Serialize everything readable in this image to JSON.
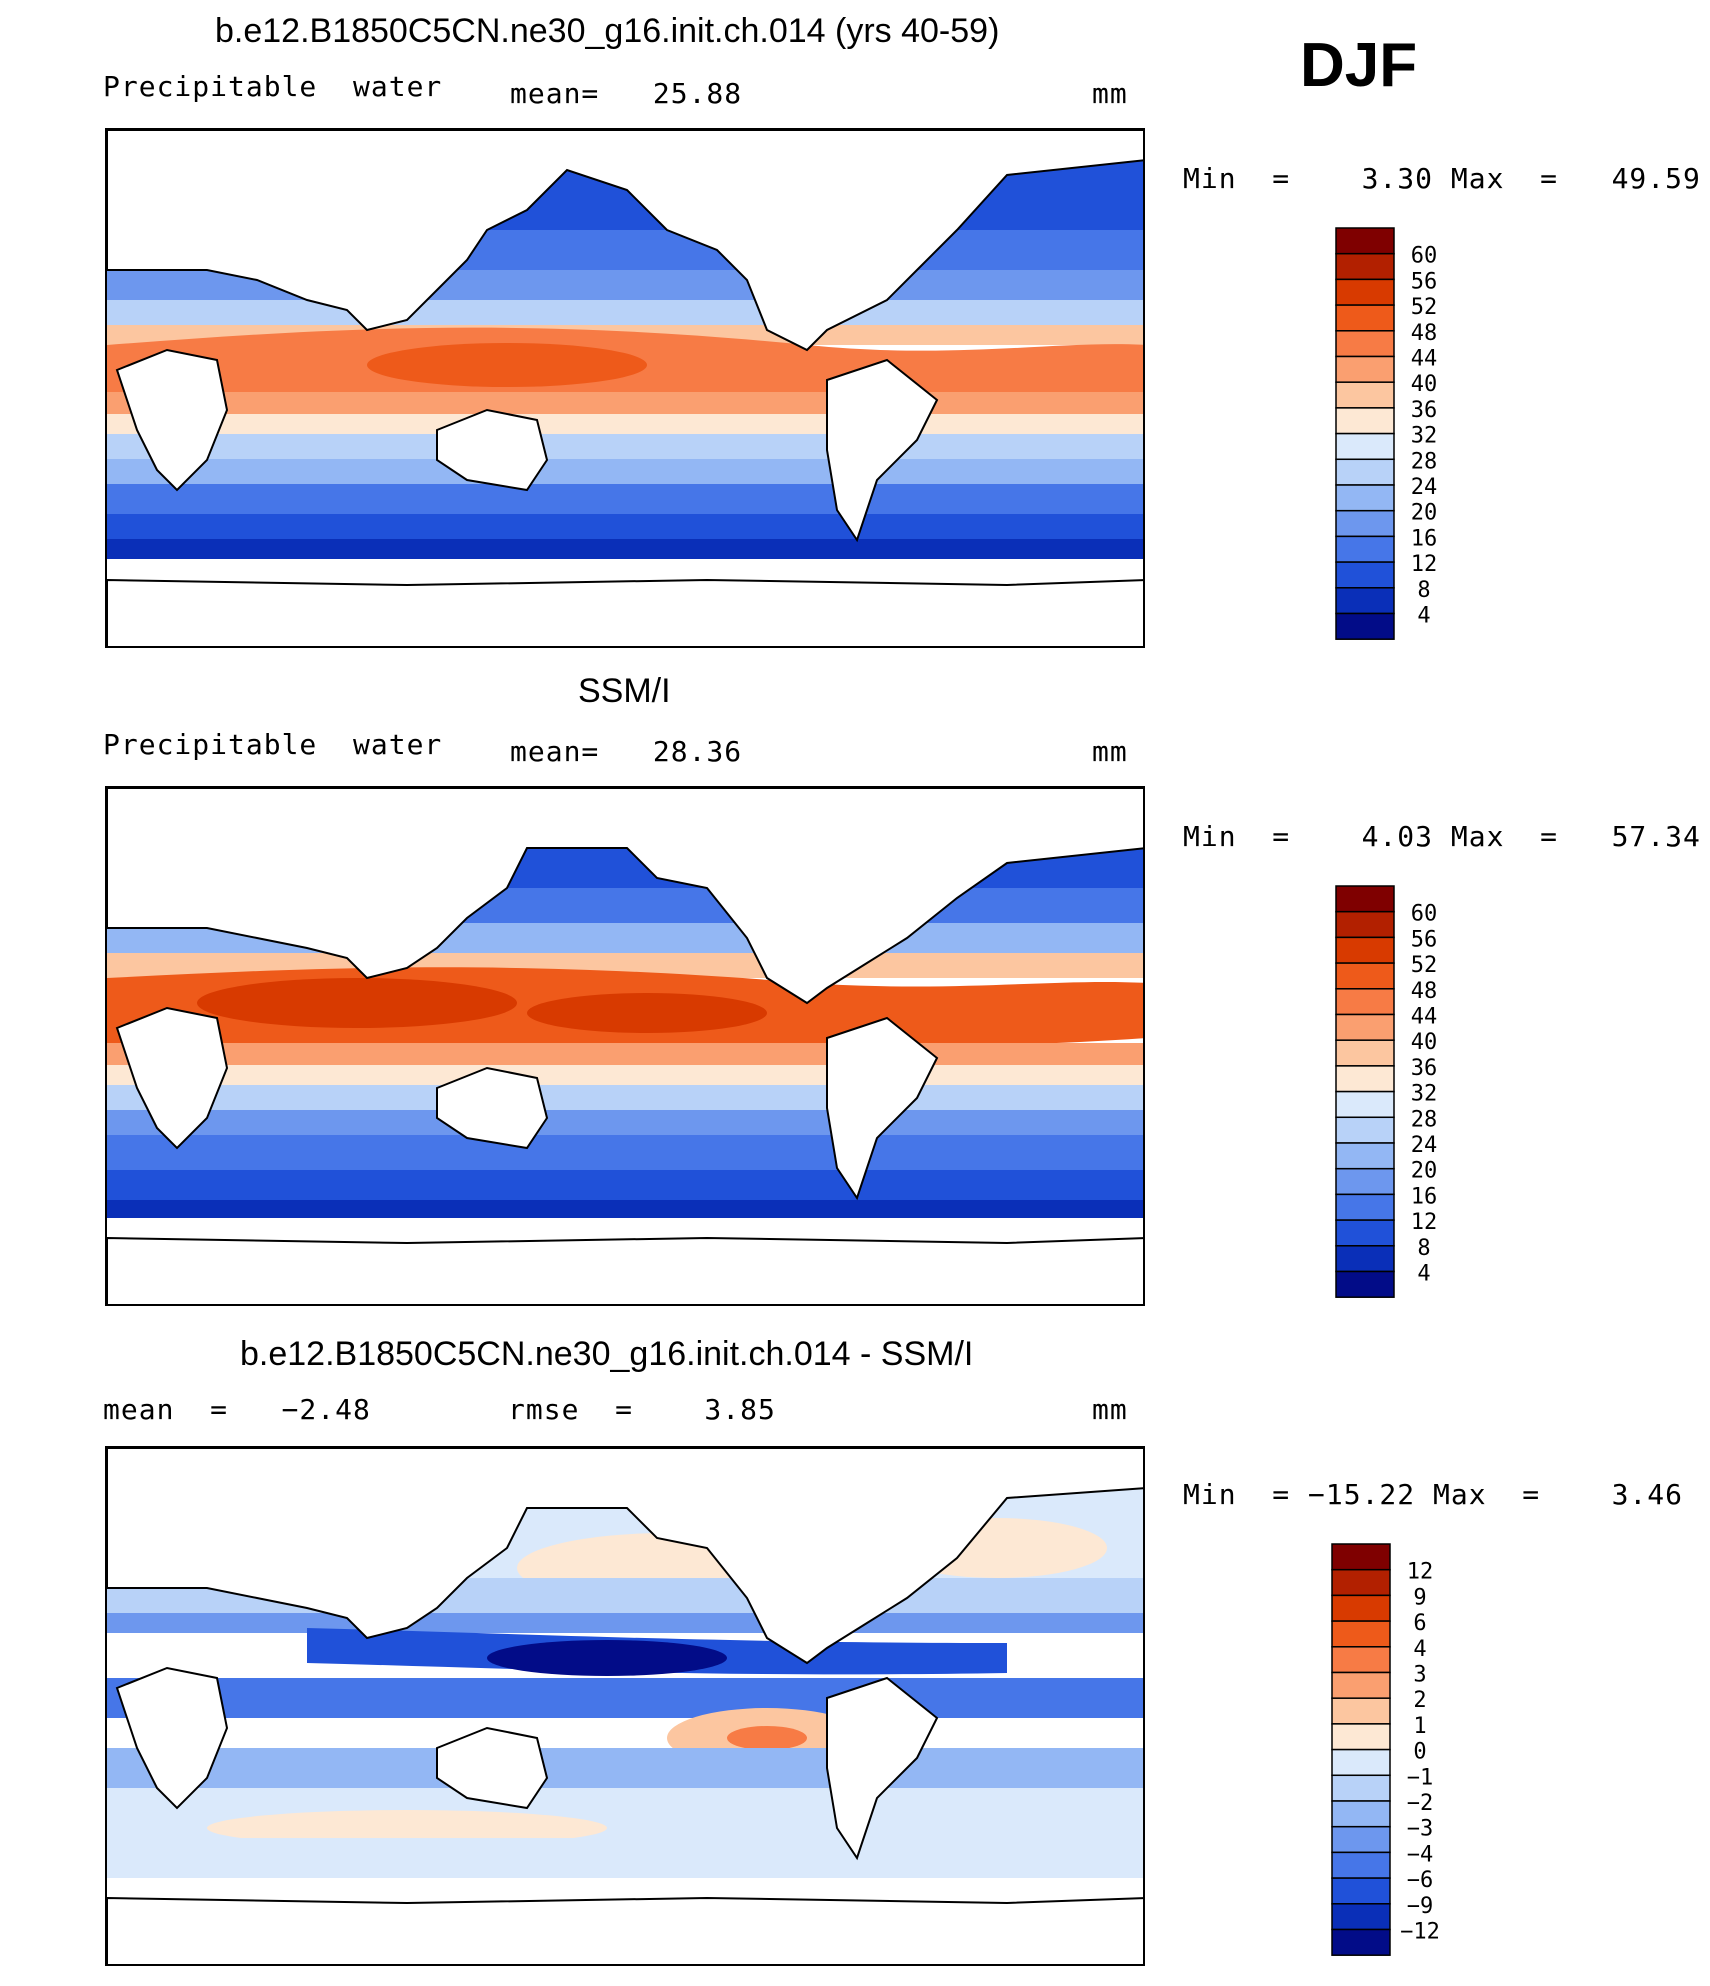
{
  "season": "DJF",
  "panels": [
    {
      "id": "model",
      "title": "b.e12.B1850C5CN.ne30_g16.init.ch.014 (yrs 40-59)",
      "left_label": "Precipitable  water",
      "center_label": "mean=   25.88",
      "units": "mm",
      "minmax": "Min  =    3.30 Max  =   49.59",
      "colorbar": {
        "labels": [
          "60",
          "56",
          "52",
          "48",
          "44",
          "40",
          "36",
          "32",
          "28",
          "24",
          "20",
          "16",
          "12",
          "8",
          "4"
        ],
        "colors": [
          "#7f0000",
          "#b22000",
          "#d83a00",
          "#ee5a1a",
          "#f77b45",
          "#fa9f70",
          "#fcc6a0",
          "#fde8d4",
          "#dae9fb",
          "#b8d2f8",
          "#93b7f4",
          "#6d97ee",
          "#4676e8",
          "#2051d9",
          "#0a2fb8",
          "#020c88"
        ]
      }
    },
    {
      "id": "obs",
      "title": "SSM/I",
      "left_label": "Precipitable  water",
      "center_label": "mean=   28.36",
      "units": "mm",
      "minmax": "Min  =    4.03 Max  =   57.34",
      "colorbar": {
        "labels": [
          "60",
          "56",
          "52",
          "48",
          "44",
          "40",
          "36",
          "32",
          "28",
          "24",
          "20",
          "16",
          "12",
          "8",
          "4"
        ],
        "colors": [
          "#7f0000",
          "#b22000",
          "#d83a00",
          "#ee5a1a",
          "#f77b45",
          "#fa9f70",
          "#fcc6a0",
          "#fde8d4",
          "#dae9fb",
          "#b8d2f8",
          "#93b7f4",
          "#6d97ee",
          "#4676e8",
          "#2051d9",
          "#0a2fb8",
          "#020c88"
        ]
      }
    },
    {
      "id": "diff",
      "title": "b.e12.B1850C5CN.ne30_g16.init.ch.014 - SSM/I",
      "left_label": "mean  =   −2.48",
      "center_label": "rmse  =    3.85",
      "units": "mm",
      "minmax": "Min  = −15.22 Max  =    3.46",
      "colorbar": {
        "labels": [
          "12",
          "9",
          "6",
          "4",
          "3",
          "2",
          "1",
          "0",
          "−1",
          "−2",
          "−3",
          "−4",
          "−6",
          "−9",
          "−12"
        ],
        "colors": [
          "#7f0000",
          "#b22000",
          "#d83a00",
          "#ee5a1a",
          "#f77b45",
          "#fa9f70",
          "#fcc6a0",
          "#fde8d4",
          "#dae9fb",
          "#b8d2f8",
          "#93b7f4",
          "#6d97ee",
          "#4676e8",
          "#2051d9",
          "#0a2fb8",
          "#020c88"
        ]
      }
    }
  ],
  "map_colors": {
    "land": "#ffffff",
    "coast": "#000000"
  }
}
